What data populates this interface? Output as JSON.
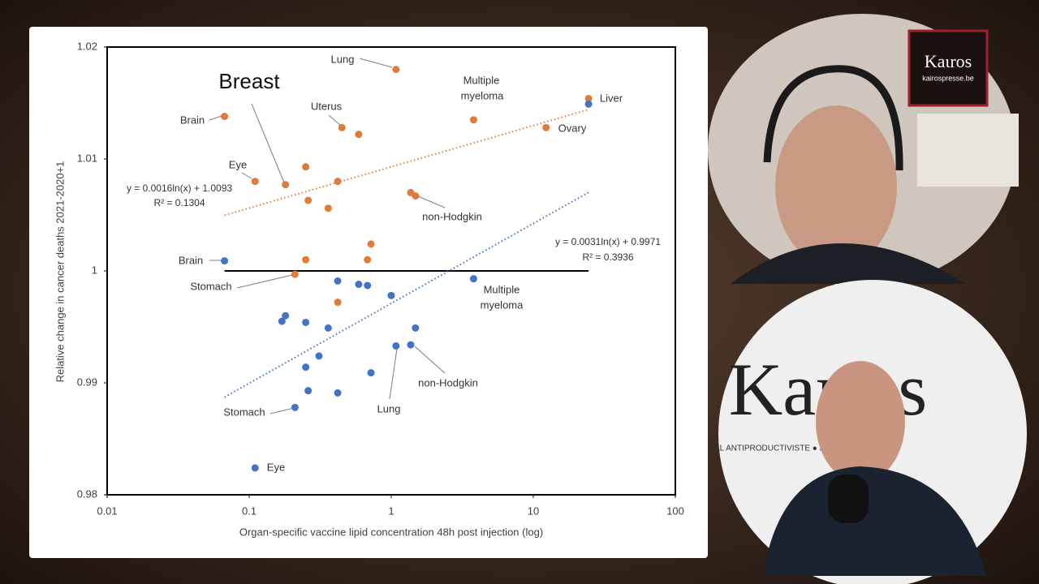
{
  "chart_data": {
    "type": "scatter",
    "x_label": "Organ-specific vaccine lipid concentration 48h post injection (log)",
    "y_label": "Relative change in cancer deaths 2021-2020+1",
    "x_log": true,
    "xlim": [
      0.01,
      100
    ],
    "xticks": [
      0.01,
      0.1,
      1,
      10,
      100
    ],
    "ylim": [
      0.98,
      1.02
    ],
    "yticks": [
      0.98,
      0.99,
      1,
      1.01,
      1.02
    ],
    "reference_line": 1,
    "series": [
      {
        "color": "#e07b39",
        "x": [
          0.067,
          1.08,
          0.45,
          0.59,
          3.8,
          24.5,
          12.3,
          0.11,
          0.18,
          0.25,
          0.42,
          0.26,
          0.36,
          1.37,
          1.48,
          0.72,
          0.68,
          0.25,
          0.21,
          0.42
        ],
        "values": [
          1.0138,
          1.018,
          1.0128,
          1.0122,
          1.0135,
          1.0154,
          1.0128,
          1.008,
          1.0077,
          1.0093,
          1.008,
          1.0063,
          1.0056,
          1.007,
          1.0067,
          1.0024,
          1.001,
          1.001,
          0.9997,
          0.9972
        ]
      },
      {
        "color": "#4472c4",
        "x": [
          0.067,
          24.5,
          0.42,
          0.59,
          0.68,
          1.0,
          3.8,
          0.18,
          0.17,
          0.25,
          0.36,
          1.48,
          0.31,
          0.25,
          1.08,
          1.37,
          0.72,
          0.26,
          0.42,
          0.21,
          0.11
        ],
        "values": [
          1.0009,
          1.0149,
          0.9991,
          0.9988,
          0.9987,
          0.9978,
          0.9993,
          0.996,
          0.9955,
          0.9954,
          0.9949,
          0.9949,
          0.9924,
          0.9914,
          0.9933,
          0.9934,
          0.9909,
          0.9893,
          0.9891,
          0.9878,
          0.9824
        ]
      }
    ],
    "trendlines": [
      {
        "equation": "y = 0.0016ln(x) + 1.0093",
        "r2": "R² = 0.1304",
        "a": 0.0016,
        "b": 1.0093
      },
      {
        "equation": "y = 0.0031ln(x) + 0.9971",
        "r2": "R² = 0.3936",
        "a": 0.0031,
        "b": 0.9971
      }
    ],
    "annotations": [
      {
        "lines": [
          "Lung"
        ]
      },
      {
        "lines": [
          "Breast"
        ]
      },
      {
        "lines": [
          "Multiple",
          "myeloma"
        ]
      },
      {
        "lines": [
          "Uterus"
        ]
      },
      {
        "lines": [
          "Liver"
        ]
      },
      {
        "lines": [
          "Brain"
        ]
      },
      {
        "lines": [
          "Ovary"
        ]
      },
      {
        "lines": [
          "Eye"
        ]
      },
      {
        "lines": [
          "non-Hodgkin"
        ]
      },
      {
        "lines": [
          "Brain"
        ]
      },
      {
        "lines": [
          "Stomach"
        ]
      },
      {
        "lines": [
          "Multiple",
          "myeloma"
        ]
      },
      {
        "lines": [
          "non-Hodgkin"
        ]
      },
      {
        "lines": [
          "Lung"
        ]
      },
      {
        "lines": [
          "Stomach"
        ]
      },
      {
        "lines": [
          "Eye"
        ]
      }
    ]
  },
  "logo": {
    "title": "Kaιros",
    "url": "kairospresse.be"
  },
  "video": {
    "brand": "Kaιros",
    "tagline": "AL ANTIPRODUCTIVISTE ● PO"
  }
}
